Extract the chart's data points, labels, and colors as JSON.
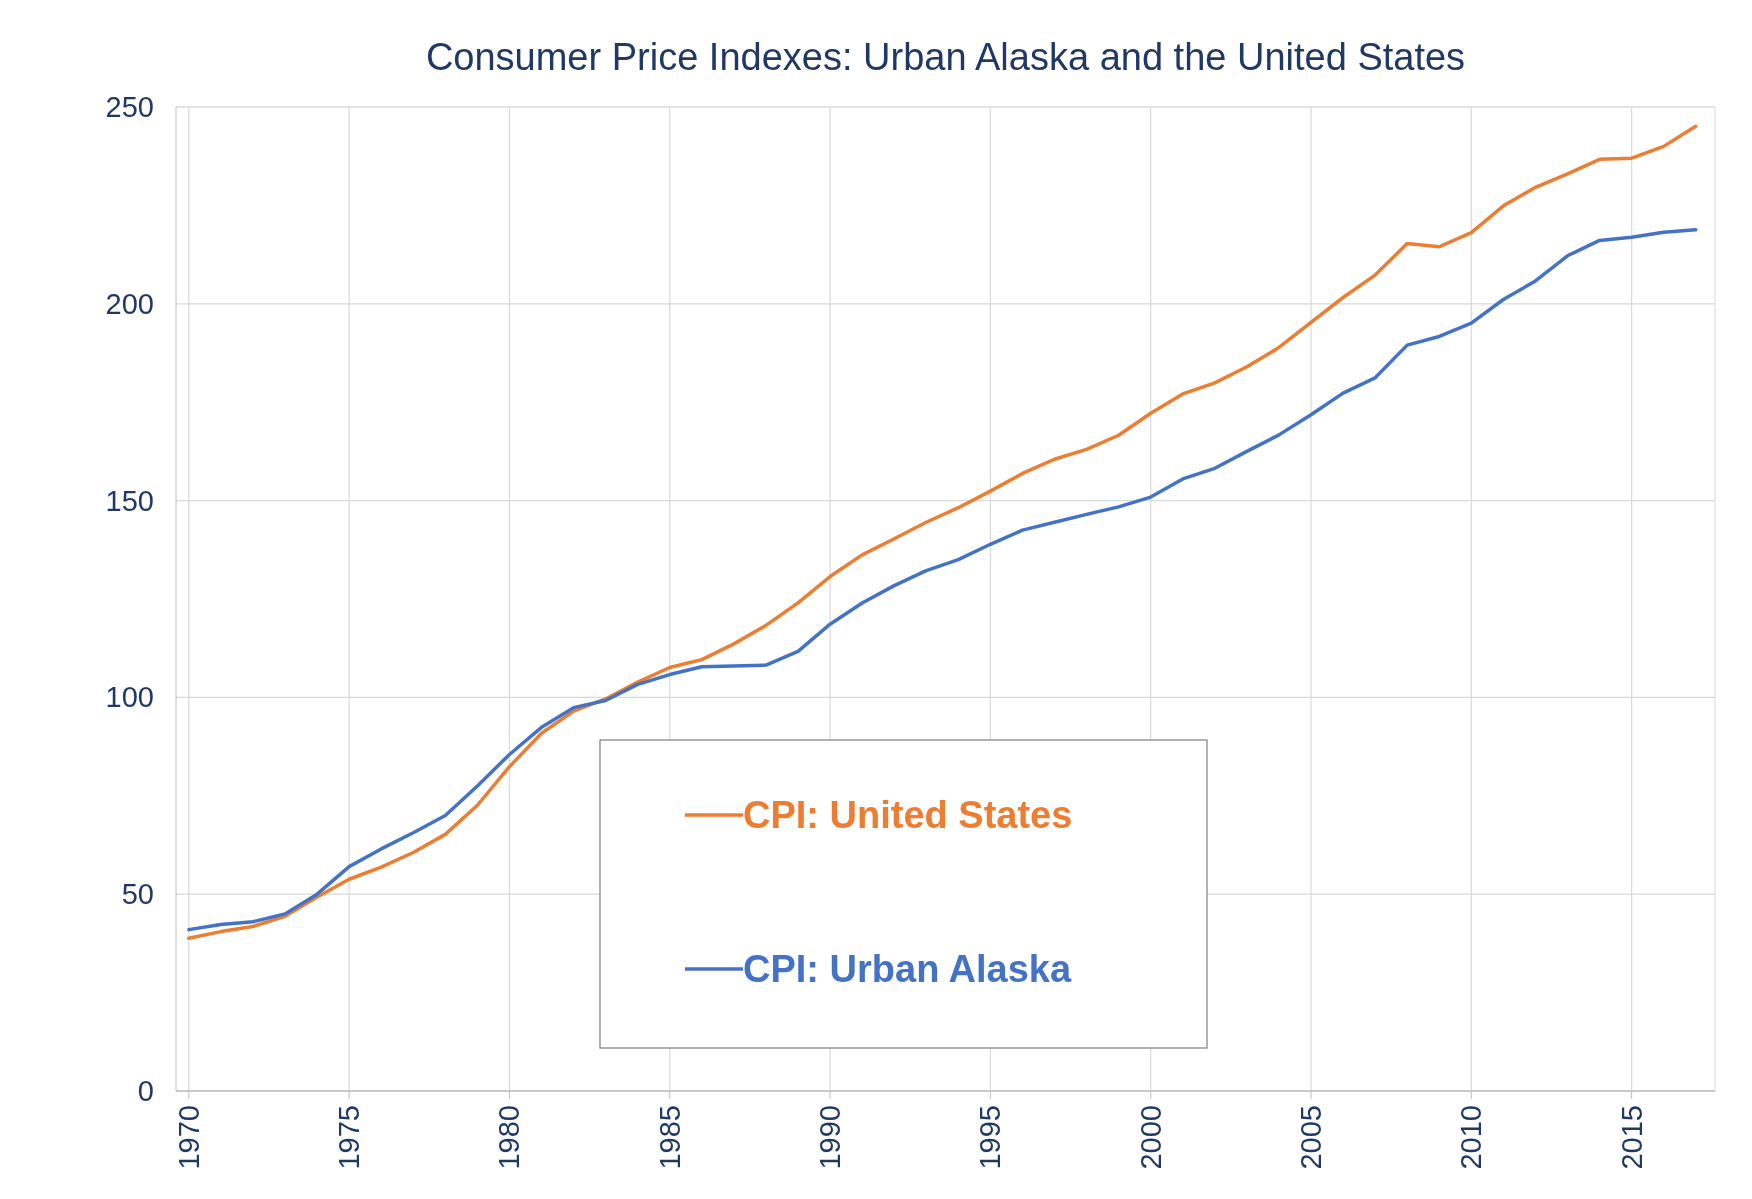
{
  "chart_data": {
    "type": "line",
    "title": "Consumer Price Indexes:  Urban Alaska and the United States",
    "x": [
      1970,
      1971,
      1972,
      1973,
      1974,
      1975,
      1976,
      1977,
      1978,
      1979,
      1980,
      1981,
      1982,
      1983,
      1984,
      1985,
      1986,
      1987,
      1988,
      1989,
      1990,
      1991,
      1992,
      1993,
      1994,
      1995,
      1996,
      1997,
      1998,
      1999,
      2000,
      2001,
      2002,
      2003,
      2004,
      2005,
      2006,
      2007,
      2008,
      2009,
      2010,
      2011,
      2012,
      2013,
      2014,
      2015,
      2016,
      2017
    ],
    "series": [
      {
        "name": "CPI:  United States",
        "color": "#ed7d31",
        "values": [
          38.8,
          40.5,
          41.8,
          44.4,
          49.3,
          53.8,
          56.9,
          60.6,
          65.2,
          72.6,
          82.4,
          90.9,
          96.5,
          99.6,
          103.9,
          107.6,
          109.6,
          113.6,
          118.3,
          124.0,
          130.7,
          136.2,
          140.3,
          144.5,
          148.2,
          152.4,
          156.9,
          160.5,
          163.0,
          166.6,
          172.2,
          177.1,
          179.9,
          184.0,
          188.9,
          195.3,
          201.6,
          207.3,
          215.3,
          214.5,
          218.1,
          224.9,
          229.6,
          233.0,
          236.7,
          237.0,
          240.0,
          245.1
        ]
      },
      {
        "name": "CPI:  Urban Alaska",
        "color": "#4472c4",
        "values": [
          41.0,
          42.3,
          43.0,
          45.0,
          50.0,
          57.0,
          61.5,
          65.6,
          70.0,
          77.5,
          85.5,
          92.4,
          97.4,
          99.2,
          103.3,
          105.8,
          107.8,
          108.0,
          108.2,
          111.7,
          118.6,
          124.0,
          128.4,
          132.2,
          135.0,
          138.9,
          142.5,
          144.5,
          146.5,
          148.4,
          150.9,
          155.5,
          158.2,
          162.5,
          166.7,
          171.8,
          177.3,
          181.2,
          189.5,
          191.7,
          195.1,
          201.1,
          205.8,
          212.2,
          216.1,
          216.9,
          218.2,
          218.8
        ]
      }
    ],
    "xlim": [
      1969.6,
      2017.6
    ],
    "xticks": [
      1970,
      1975,
      1980,
      1985,
      1990,
      1995,
      2000,
      2005,
      2010,
      2015
    ],
    "ylim": [
      0,
      250
    ],
    "yticks": [
      0,
      50,
      100,
      150,
      200,
      250
    ],
    "grid": true,
    "legend": "bottom",
    "marker": "none",
    "line_style": "solid"
  }
}
